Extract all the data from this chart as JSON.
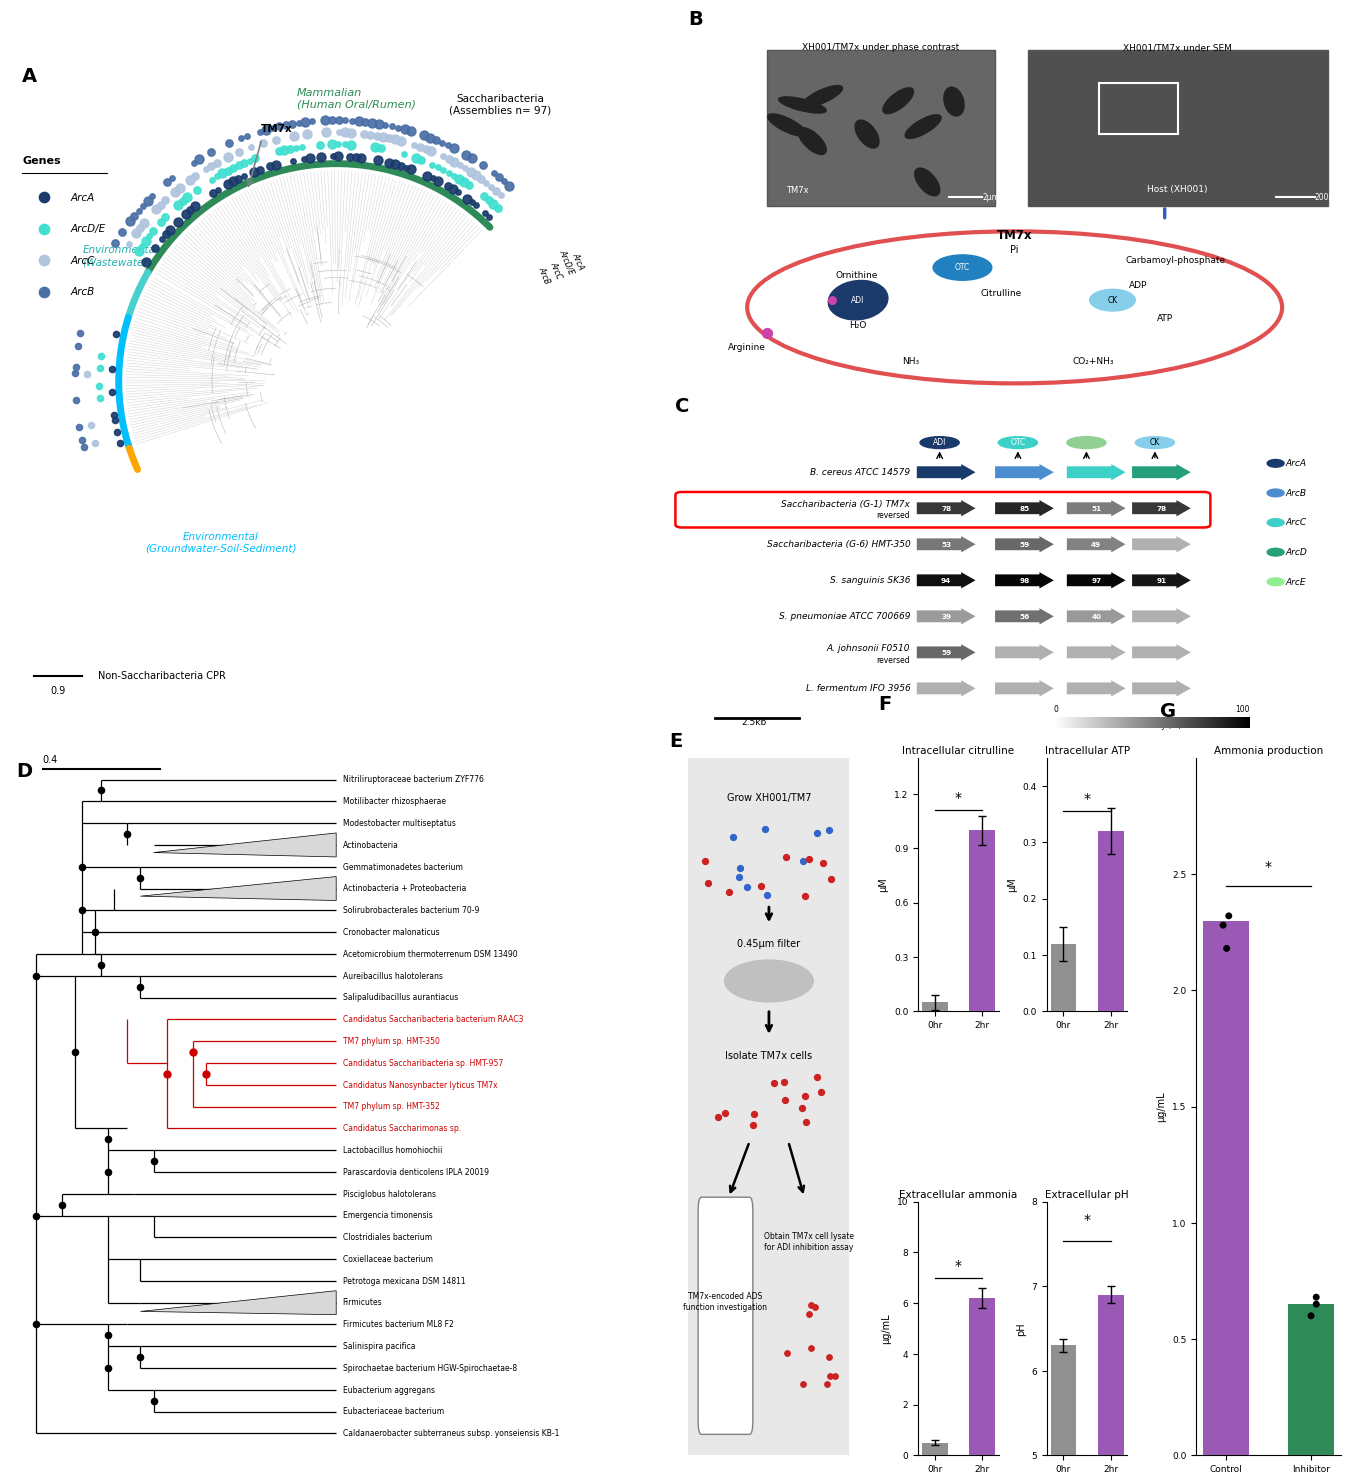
{
  "background_color": "#ffffff",
  "panel_A": {
    "label": "A",
    "legend_genes": [
      "ArcA",
      "ArcD/E",
      "ArcC",
      "ArcB"
    ],
    "legend_colors": [
      "#1a3a6b",
      "#40e0d0",
      "#b0c4de",
      "#4a6fa5"
    ],
    "scale_bar": "0.9",
    "arc_colors": {
      "Mammalian": "#2e8b57",
      "Wastewater": "#48d1cc",
      "Groundwater": "#00bfff",
      "NonSaccharibacteria": "#ffa500"
    },
    "theta_mammalian": [
      45,
      150
    ],
    "theta_wastewater": [
      150,
      163
    ],
    "theta_groundwater": [
      163,
      198
    ],
    "theta_nonsacch": [
      198,
      204
    ],
    "labels": {
      "Saccharibacteria": "Saccharibacteria\n(Assemblies n= 97)",
      "Mammalian": "Mammalian\n(Human Oral/Rumen)",
      "Wastewater": "Environmental\n(Wastewater)",
      "Groundwater": "Environmental\n(Groundwater-Soil-Sediment)",
      "NonSaccharibacteria": "Non-Saccharibacteria CPR",
      "TM7x": "TM7x",
      "gene_cols": "ArcB\nArcC\nArcD/E\nArcA"
    }
  },
  "panel_D": {
    "label": "D",
    "scale_bar": "0.4",
    "taxa": [
      "Nitriliruptoraceae_bacterium_ZYF776",
      "Motilibacter_rhizosphaerae",
      "Modestobacter_multiseptatus",
      "Actinobacteria",
      "Gemmatimonadetes_bacterium",
      "Actinobacteria + Proteobacteria",
      "Solirubrobacterales_bacterium_70-9",
      "Cronobacter_malonaticus",
      "Acetomicrobium_thermoterrenum_DSM_13490",
      "Aureibacillus_halotolerans",
      "Salipaludibacillus_aurantiacus",
      "Candidatus_Saccharibacteria_bacterium_RAAC3",
      "TM7_phylum_sp._HMT-350",
      "Candidatus_Saccharibacteria_sp._HMT-957",
      "Candidatus_Nanosynbacter_lyticus_TM7x",
      "TM7_phylum_sp._HMT-352",
      "Candidatus_Saccharimonas_sp.",
      "Lactobacillus_homohiochii",
      "Parascardovia_denticolens_IPLA_20019",
      "Pisciglobus_halotolerans",
      "Emergencia_timonensis",
      "Clostridiales_bacterium",
      "Coxiellaceae_bacterium",
      "Petrotoga_mexicana_DSM_14811",
      "Firmicutes",
      "Firmicutes_bacterium_ML8_F2",
      "Salinispira_pacifica",
      "Spirochaetae_bacterium_HGW-Spirochaetae-8",
      "Eubacterium_aggregans",
      "Eubacteriaceae_bacterium",
      "Caldanaerobacter_subterraneus_subsp._yonseiensis_KB-1"
    ],
    "red_taxa": [
      "Candidatus_Saccharibacteria_bacterium_RAAC3",
      "TM7_phylum_sp._HMT-350",
      "Candidatus_Saccharibacteria_sp._HMT-957",
      "Candidatus_Nanosynbacter_lyticus_TM7x",
      "TM7_phylum_sp._HMT-352",
      "Candidatus_Saccharimonas_sp."
    ]
  },
  "panel_F": {
    "label": "F",
    "plots": [
      {
        "title": "Intracellular citrulline",
        "xlabel_groups": [
          "0hr",
          "2hr"
        ],
        "values": [
          0.05,
          1.0
        ],
        "errors": [
          0.04,
          0.08
        ],
        "ylabel": "μM",
        "bar_colors": [
          "#909090",
          "#9b59b6"
        ],
        "ylim": [
          0,
          1.4
        ],
        "yticks": [
          0.0,
          0.3,
          0.6,
          0.9,
          1.2
        ]
      },
      {
        "title": "Intracellular ATP",
        "xlabel_groups": [
          "0hr",
          "2hr"
        ],
        "values": [
          0.12,
          0.32
        ],
        "errors": [
          0.03,
          0.04
        ],
        "ylabel": "μM",
        "bar_colors": [
          "#909090",
          "#9b59b6"
        ],
        "ylim": [
          0,
          0.45
        ],
        "yticks": [
          0.0,
          0.1,
          0.2,
          0.3,
          0.4
        ]
      },
      {
        "title": "Extracellular ammonia",
        "xlabel_groups": [
          "0hr",
          "2hr"
        ],
        "values": [
          0.5,
          6.2
        ],
        "errors": [
          0.1,
          0.4
        ],
        "ylabel": "μg/mL",
        "bar_colors": [
          "#909090",
          "#9b59b6"
        ],
        "ylim": [
          0,
          10
        ],
        "yticks": [
          0,
          2,
          4,
          6,
          8,
          10
        ]
      },
      {
        "title": "Extracellular pH",
        "xlabel_groups": [
          "0hr",
          "2hr"
        ],
        "values": [
          6.3,
          6.9
        ],
        "errors": [
          0.08,
          0.1
        ],
        "ylabel": "pH",
        "bar_colors": [
          "#909090",
          "#9b59b6"
        ],
        "ylim": [
          5,
          8
        ],
        "yticks": [
          5,
          6,
          7,
          8
        ]
      }
    ]
  },
  "panel_G": {
    "label": "G",
    "title": "Ammonia production",
    "groups": [
      "Control",
      "Inhibitor"
    ],
    "values": [
      2.3,
      0.65
    ],
    "scatter_control": [
      2.18,
      2.32,
      2.28
    ],
    "scatter_inhibitor": [
      0.6,
      0.68,
      0.65
    ],
    "ylabel": "μg/mL",
    "bar_colors": [
      "#9b59b6",
      "#2e8b57"
    ],
    "ylim": [
      0,
      3.0
    ],
    "yticks": [
      0.0,
      0.5,
      1.0,
      1.5,
      2.0,
      2.5
    ]
  }
}
